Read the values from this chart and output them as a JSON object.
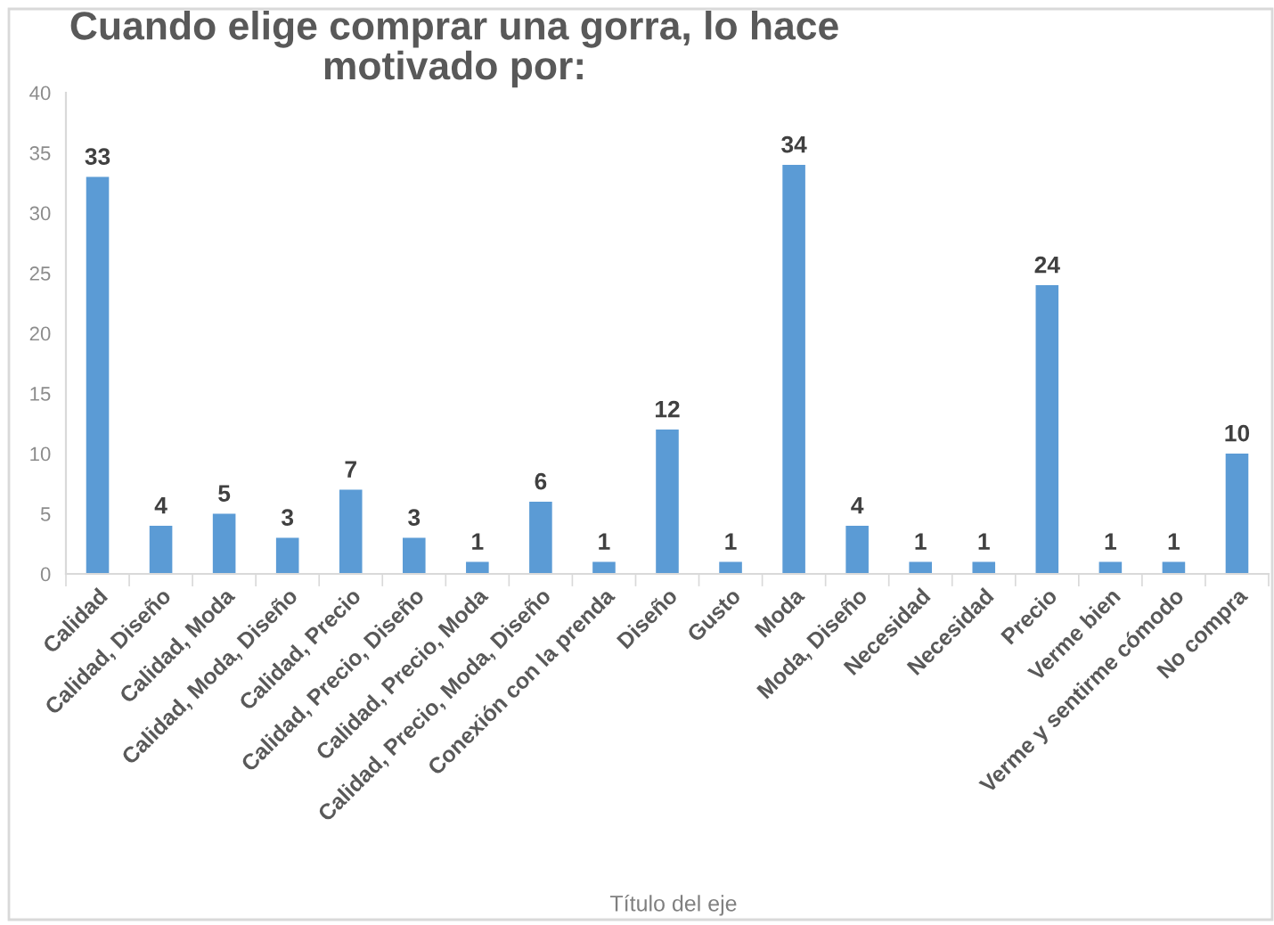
{
  "chart_data": {
    "type": "bar",
    "title": "Cuando elige comprar una gorra, lo hace\nmotivado por:",
    "xlabel": "Título del eje",
    "categories": [
      "Calidad",
      "Calidad, Diseño",
      "Calidad, Moda",
      "Calidad, Moda, Diseño",
      "Calidad, Precio",
      "Calidad, Precio, Diseño",
      "Calidad, Precio, Moda",
      "Calidad, Precio, Moda, Diseño",
      "Conexión con la prenda",
      "Diseño",
      "Gusto",
      "Moda",
      "Moda, Diseño",
      "Necesidad",
      "Necesidad",
      "Precio",
      "Verme bien",
      "Verme y sentirme cómodo",
      "No compra"
    ],
    "values": [
      33,
      4,
      5,
      3,
      7,
      3,
      1,
      6,
      1,
      12,
      1,
      34,
      4,
      1,
      1,
      24,
      1,
      1,
      10
    ],
    "color": "#5b9bd5",
    "ylim": [
      0,
      40
    ],
    "yticks": [
      0,
      5,
      10,
      15,
      20,
      25,
      30,
      35,
      40
    ],
    "grid": false,
    "data_labels": true
  }
}
